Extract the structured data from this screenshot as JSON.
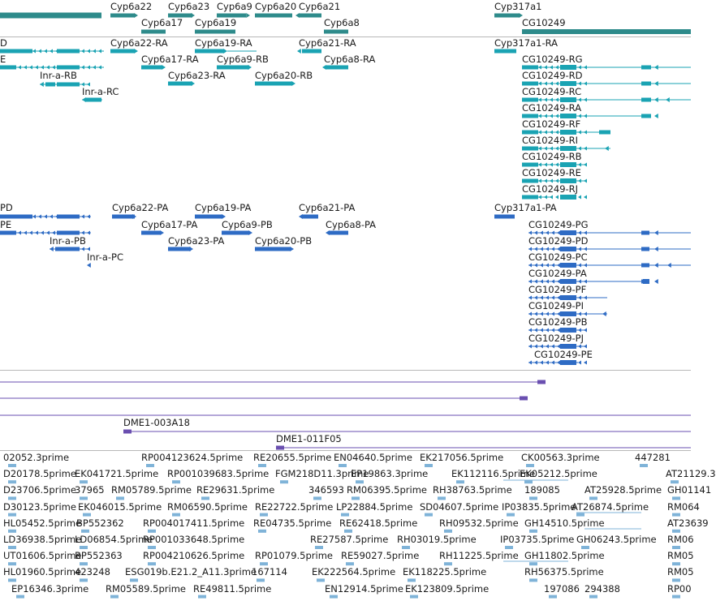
{
  "colors": {
    "gene": "#2e8b8b",
    "mrna": "#1aa3b3",
    "cds": "#2e6bc4",
    "cdna": "#6a4fb0",
    "est": "#7fb3d8"
  },
  "gene_track": {
    "labels": [
      "Cyp6a22",
      "Cyp6a23",
      "Cyp6a9",
      "Cyp6a20",
      "Cyp6a21",
      "Cyp317a1",
      "Cyp6a17",
      "Cyp6a19",
      "Cyp6a8",
      "CG10249"
    ]
  },
  "mrna_track": {
    "labels": [
      "D",
      "E",
      "Cyp6a22-RA",
      "Cyp6a19-RA",
      "Cyp6a21-RA",
      "Cyp317a1-RA",
      "Cyp6a17-RA",
      "Cyp6a9-RB",
      "Cyp6a8-RA",
      "Inr-a-RB",
      "Cyp6a23-RA",
      "Cyp6a20-RB",
      "Inr-a-RC",
      "CG10249-RG",
      "CG10249-RD",
      "CG10249-RC",
      "CG10249-RA",
      "CG10249-RF",
      "CG10249-RI",
      "CG10249-RB",
      "CG10249-RE",
      "CG10249-RJ"
    ]
  },
  "cds_track": {
    "labels": [
      "PD",
      "PE",
      "Cyp6a22-PA",
      "Cyp6a19-PA",
      "Cyp6a21-PA",
      "Cyp317a1-PA",
      "Cyp6a17-PA",
      "Cyp6a9-PB",
      "Cyp6a8-PA",
      "Inr-a-PB",
      "Cyp6a23-PA",
      "Cyp6a20-PB",
      "Inr-a-PC",
      "CG10249-PG",
      "CG10249-PD",
      "CG10249-PC",
      "CG10249-PA",
      "CG10249-PF",
      "CG10249-PI",
      "CG10249-PB",
      "CG10249-PJ",
      "CG10249-PE"
    ]
  },
  "cdna_track": {
    "labels": [
      "DME1-003A18",
      "DME1-011F05"
    ]
  },
  "est_track": {
    "rows": [
      [
        "02052.3prime",
        "RP004123624.5prime",
        "RE20655.5prime",
        "EN04640.5prime",
        "EK217056.5prime",
        "CK00563.3prime",
        "447281"
      ],
      [
        "D20178.5prime",
        "EK041721.5prime",
        "RP001039683.5prime",
        "FGM218D11.3prime",
        "EP19863.3prime",
        "EK112116.5prime",
        "EK05212.5prime",
        "AT21129.3"
      ],
      [
        "D23706.5prime",
        "37965",
        "RM05789.5prime",
        "RE29631.5prime",
        "346593",
        "RM06395.5prime",
        "RH38763.5prime",
        "189085",
        "AT25928.5prime",
        "GH01141"
      ],
      [
        "D30123.5prime",
        "EK046015.5prime",
        "RM06590.5prime",
        "RE22722.5prime",
        "LP22884.5prime",
        "SD04607.5prime",
        "IP03835.5prime",
        "AT26874.5prime",
        "RM064"
      ],
      [
        "HL05452.5prime",
        "BP552362",
        "RP004017411.5prime",
        "RE04735.5prime",
        "RE62418.5prime",
        "RH09532.5prime",
        "GH14510.5prime",
        "AT23639"
      ],
      [
        "LD36938.5prime",
        "LD06854.5prime",
        "RP001033648.5prime",
        "RE27587.5prime",
        "RH03019.5prime",
        "IP03735.5prime",
        "GH06243.5prime",
        "RM06"
      ],
      [
        "UT01606.5prime",
        "BP552363",
        "RP004210626.5prime",
        "RP01079.5prime",
        "RE59027.5prime",
        "RH11225.5prime",
        "GH11802.5prime",
        "RM05"
      ],
      [
        "HL01960.5prime",
        "423248",
        "ESG019b.E21.2_A11.3prime",
        "167114",
        "EK222564.5prime",
        "EK118225.5prime",
        "RH56375.5prime",
        "RM05"
      ],
      [
        "EP16346.3prime",
        "RM05589.5prime",
        "RE49811.5prime",
        "EN12914.5prime",
        "EK123809.5prime",
        "197086",
        "294388",
        "RP00"
      ]
    ]
  }
}
